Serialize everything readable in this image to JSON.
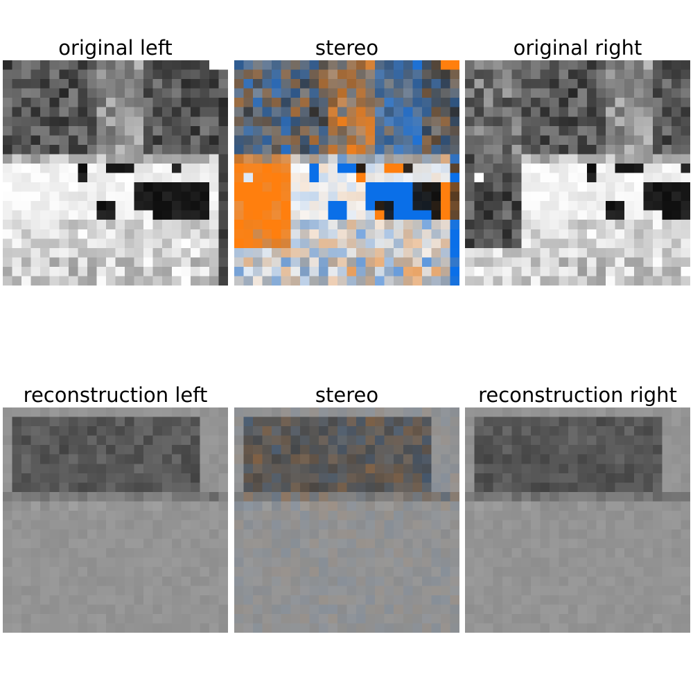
{
  "panels": [
    {
      "title": "original left",
      "kind": "gray",
      "source": "orig-left"
    },
    {
      "title": "stereo",
      "kind": "stereo",
      "source": "orig-stereo"
    },
    {
      "title": "original right",
      "kind": "gray",
      "source": "orig-right"
    },
    {
      "title": "reconstruction left",
      "kind": "gray",
      "source": "recon-left"
    },
    {
      "title": "stereo",
      "kind": "stereo",
      "source": "recon-stereo"
    },
    {
      "title": "reconstruction right",
      "kind": "gray",
      "source": "recon-right"
    }
  ],
  "colors": {
    "background": "#ffffff",
    "stereo_left": "#ff7f0e",
    "stereo_right": "#0a6fe8"
  }
}
